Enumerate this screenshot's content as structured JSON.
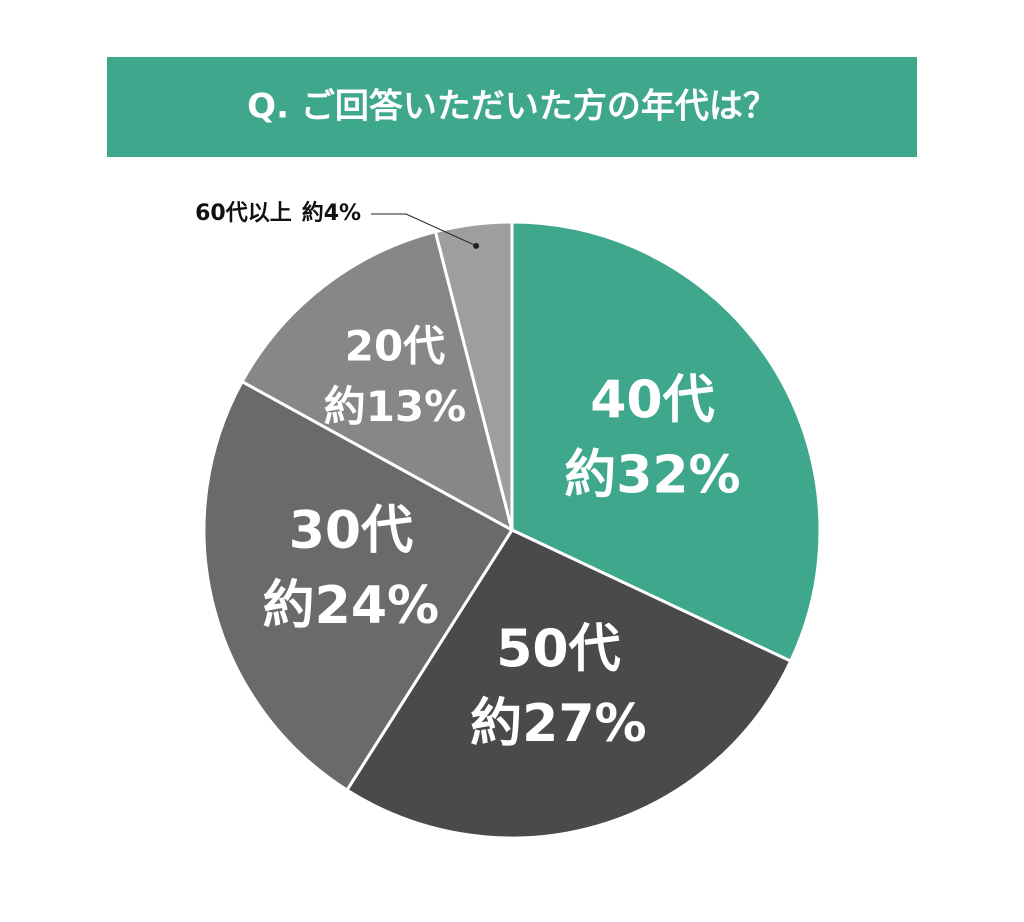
{
  "chart_data": {
    "type": "pie",
    "title": "Q. ご回答いただいた方の年代は？",
    "categories": [
      "40代",
      "50代",
      "30代",
      "20代",
      "60代以上"
    ],
    "values": [
      32,
      27,
      24,
      13,
      4
    ],
    "value_labels": [
      "約32%",
      "約27%",
      "約24%",
      "約13%",
      "約4%"
    ],
    "colors": [
      "#3ea78c",
      "#4a4a4a",
      "#6a6a6a",
      "#878787",
      "#9e9e9e"
    ]
  }
}
